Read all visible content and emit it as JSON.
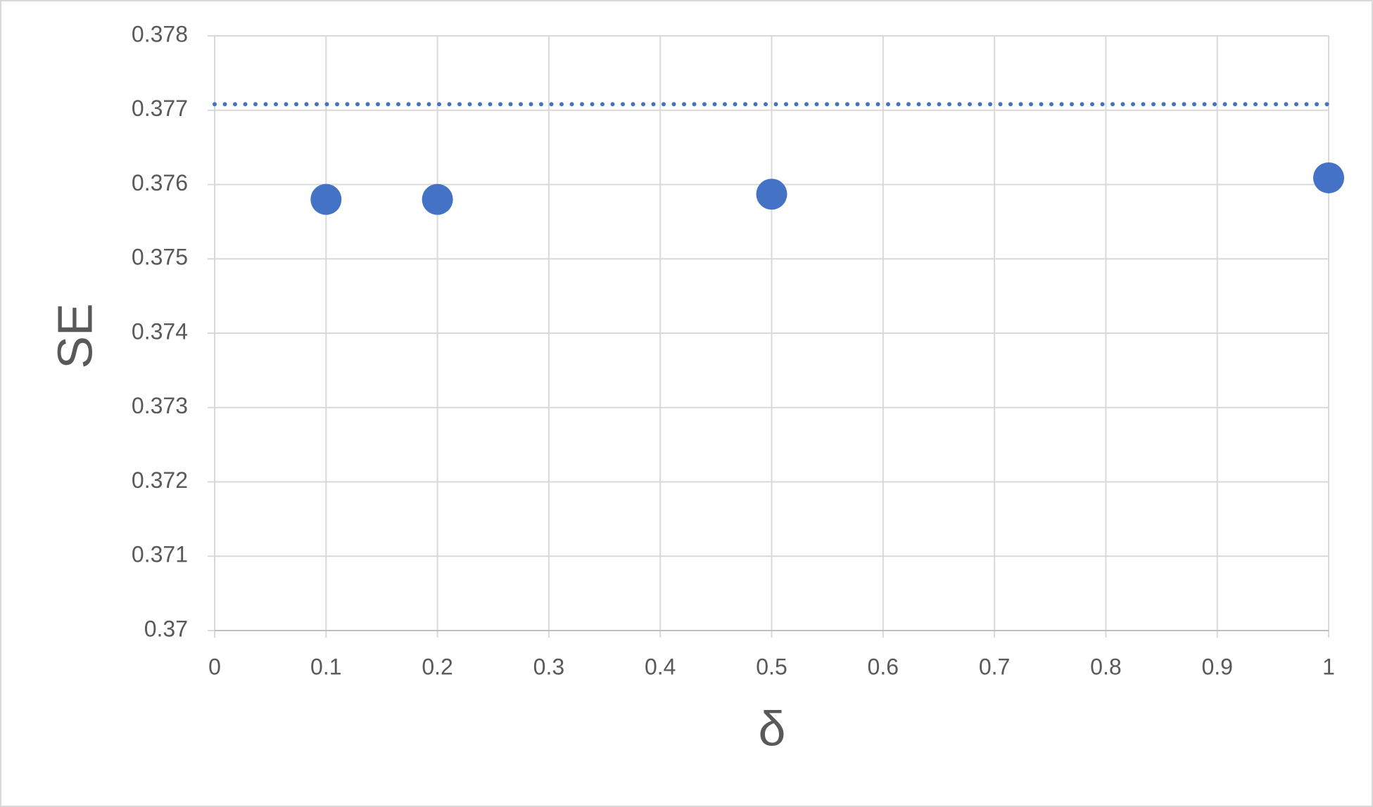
{
  "chart_data": {
    "type": "scatter",
    "x_label": "δ",
    "y_label": "SE",
    "xlim": [
      0,
      1
    ],
    "xticks": [
      0,
      0.1,
      0.2,
      0.3,
      0.4,
      0.5,
      0.6,
      0.7,
      0.8,
      0.9,
      1
    ],
    "ylim": [
      0.37,
      0.378
    ],
    "yticks": [
      0.37,
      0.371,
      0.372,
      0.373,
      0.374,
      0.375,
      0.376,
      0.377,
      0.378
    ],
    "grid": true,
    "series": [
      {
        "type": "scatter",
        "color": "#4472c4",
        "x": [
          0.1,
          0.2,
          0.5,
          1
        ],
        "values": [
          0.3758,
          0.3758,
          0.37587,
          0.37609
        ]
      },
      {
        "type": "line",
        "line_style": "dotted",
        "color": "#4472c4",
        "x": [
          0,
          1
        ],
        "values": [
          0.37708,
          0.37708
        ]
      }
    ]
  }
}
